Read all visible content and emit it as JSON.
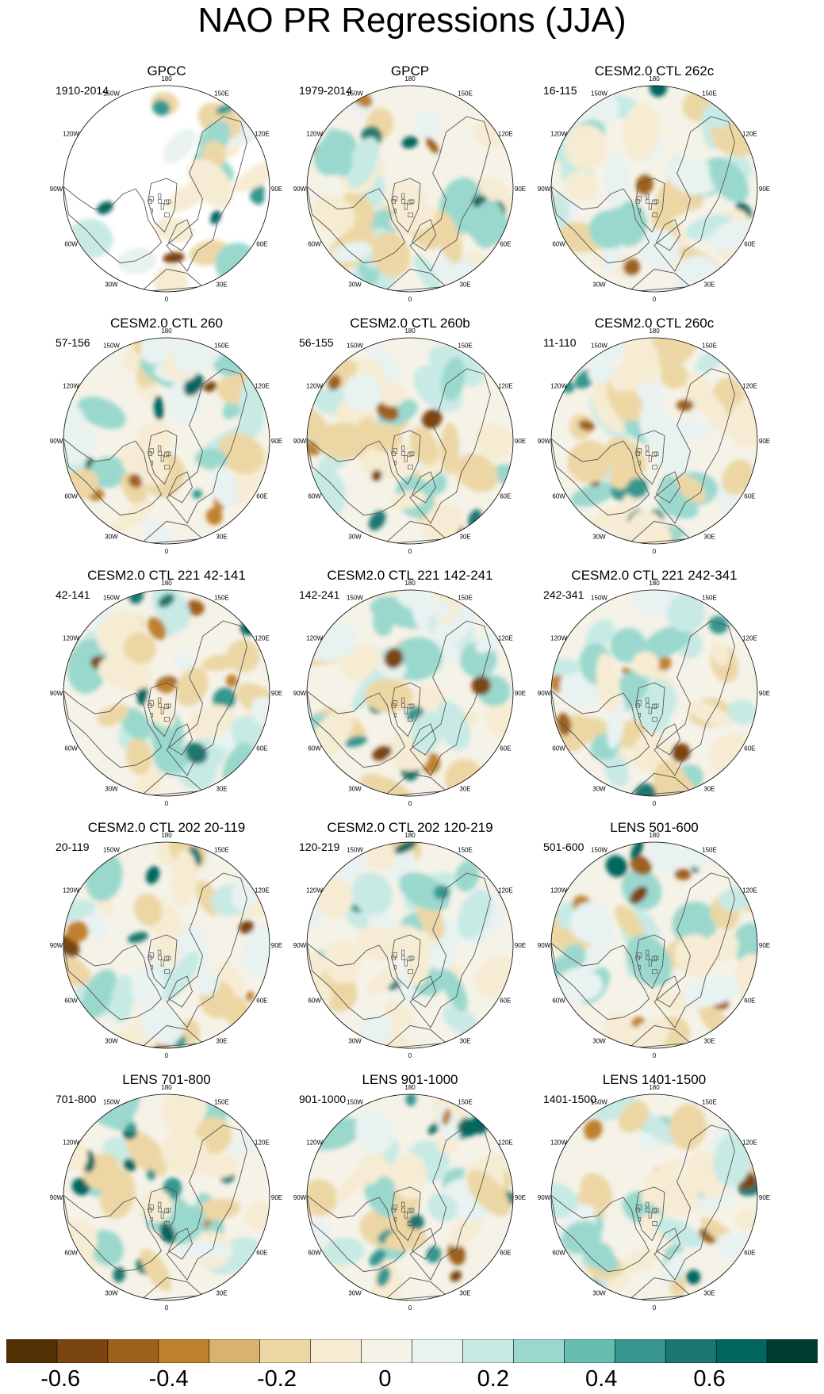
{
  "title": "NAO PR Regressions (JJA)",
  "longitude_labels": [
    "180",
    "150E",
    "120E",
    "90E",
    "60E",
    "30E",
    "0",
    "30W",
    "60W",
    "90W",
    "120W",
    "150W"
  ],
  "panels": [
    {
      "title": "GPCC",
      "period": "1910-2014",
      "data_coverage": "land-only"
    },
    {
      "title": "GPCP",
      "period": "1979-2014"
    },
    {
      "title": "CESM2.0 CTL 262c",
      "period": "16-115"
    },
    {
      "title": "CESM2.0 CTL 260",
      "period": "57-156"
    },
    {
      "title": "CESM2.0 CTL 260b",
      "period": "56-155"
    },
    {
      "title": "CESM2.0 CTL 260c",
      "period": "11-110"
    },
    {
      "title": "CESM2.0 CTL 221 42-141",
      "period": "42-141"
    },
    {
      "title": "CESM2.0 CTL 221 142-241",
      "period": "142-241"
    },
    {
      "title": "CESM2.0 CTL 221 242-341",
      "period": "242-341"
    },
    {
      "title": "CESM2.0 CTL 202 20-119",
      "period": "20-119"
    },
    {
      "title": "CESM2.0 CTL 202 120-219",
      "period": "120-219"
    },
    {
      "title": "LENS 501-600",
      "period": "501-600"
    },
    {
      "title": "LENS 701-800",
      "period": "701-800"
    },
    {
      "title": "LENS 901-1000",
      "period": "901-1000"
    },
    {
      "title": "LENS 1401-1500",
      "period": "1401-1500"
    }
  ],
  "colorbar": {
    "colors": [
      "#543005",
      "#7b4510",
      "#9e611c",
      "#bf812d",
      "#dbb26d",
      "#ecd7a4",
      "#f6ecd3",
      "#f5f2e8",
      "#e8f2f1",
      "#c7eae5",
      "#9ad8cd",
      "#66bdb0",
      "#35978f",
      "#1a7870",
      "#01665e",
      "#003c30"
    ],
    "labels": [
      "-0.6",
      "-0.4",
      "-0.2",
      "0",
      "0.2",
      "0.4",
      "0.6"
    ],
    "label_values": [
      -0.6,
      -0.4,
      -0.2,
      0,
      0.2,
      0.4,
      0.6
    ]
  }
}
